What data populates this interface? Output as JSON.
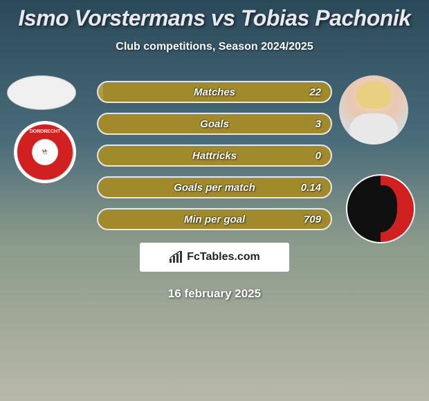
{
  "title": "Ismo Vorstermans vs Tobias Pachonik",
  "subtitle": "Club competitions, Season 2024/2025",
  "date": "16 february 2025",
  "brand": {
    "text": "FcTables.com"
  },
  "colors": {
    "bar_bg": "#a08a2c",
    "bar_border": "#e8e8e8",
    "accent_red": "#d02020",
    "accent_black": "#101010",
    "page_top": "#2a4a5a",
    "page_bottom": "#b8b8a8"
  },
  "club_left": {
    "name": "DORDRECHT"
  },
  "stats": [
    {
      "label": "Matches",
      "value": "22",
      "left_pct": 2,
      "right_pct": 0
    },
    {
      "label": "Goals",
      "value": "3",
      "left_pct": 0,
      "right_pct": 0
    },
    {
      "label": "Hattricks",
      "value": "0",
      "left_pct": 0,
      "right_pct": 0
    },
    {
      "label": "Goals per match",
      "value": "0.14",
      "left_pct": 0,
      "right_pct": 0
    },
    {
      "label": "Min per goal",
      "value": "709",
      "left_pct": 0,
      "right_pct": 0
    }
  ]
}
